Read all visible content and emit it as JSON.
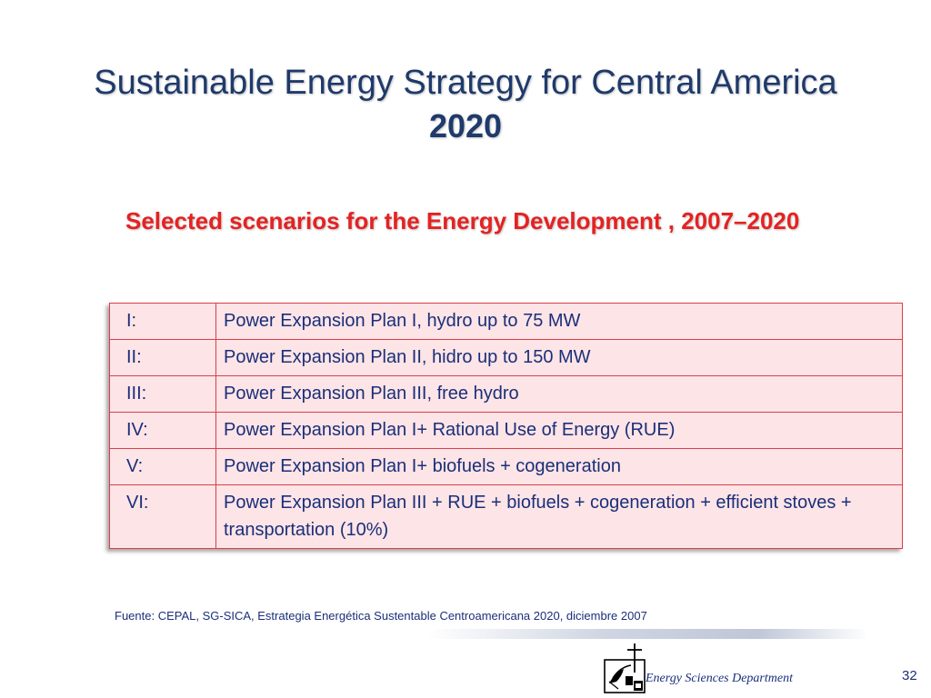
{
  "title": {
    "line1": "Sustainable Energy Strategy for Central America",
    "line2": "2020"
  },
  "subtitle": "Selected scenarios for the Energy  Development  , 2007–2020",
  "scenarios": [
    {
      "code": "I:",
      "description": "Power Expansion Plan I, hydro up to  75 MW"
    },
    {
      "code": "II:",
      "description": "Power Expansion  Plan  II, hidro up to 150 MW"
    },
    {
      "code": "III:",
      "description": "Power Expansion  Plan III, free hydro"
    },
    {
      "code": "IV:",
      "description": "Power Expansion Plan I+ Rational Use of Energy (RUE)"
    },
    {
      "code": "V:",
      "description": "Power Expansion Plan I+ biofuels  + cogeneration"
    },
    {
      "code": "VI:",
      "description": "Power Expansion Plan III + RUE + biofuels + cogeneration + efficient stoves + transportation (10%)"
    }
  ],
  "source": "Fuente:  CEPAL, SG-SICA, Estrategia Energética Sustentable Centroamericana 2020, diciembre 2007",
  "footer": {
    "department": "Energy Sciences Department",
    "page_number": "32"
  },
  "colors": {
    "title": "#1f3a6b",
    "subtitle": "#e52222",
    "table_fill": "#fde4e6",
    "table_border": "#d9404b",
    "body_text": "#1a2f7a"
  }
}
